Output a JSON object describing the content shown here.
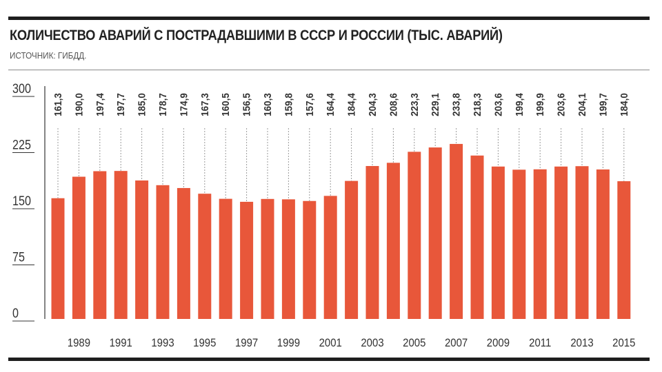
{
  "title": "КОЛИЧЕСТВО АВАРИЙ С ПОСТРАДАВШИМИ В СССР И РОССИИ (ТЫС. АВАРИЙ)",
  "subtitle": "ИСТОЧНИК: ГИБДД.",
  "colors": {
    "bar": "#e8573a",
    "text": "#222222",
    "axis": "#333333",
    "rule": "#1e1e1e"
  },
  "chart_data": {
    "type": "bar",
    "title": "КОЛИЧЕСТВО АВАРИЙ С ПОСТРАДАВШИМИ В СССР И РОССИИ (ТЫС. АВАРИЙ)",
    "xlabel": "",
    "ylabel": "",
    "ylim": [
      0,
      300
    ],
    "yticks": [
      "0",
      "75",
      "150",
      "225",
      "300"
    ],
    "categories": [
      "1988",
      "1989",
      "1990",
      "1991",
      "1992",
      "1993",
      "1994",
      "1995",
      "1996",
      "1997",
      "1998",
      "1999",
      "2000",
      "2001",
      "2002",
      "2003",
      "2004",
      "2005",
      "2006",
      "2007",
      "2008",
      "2009",
      "2010",
      "2011",
      "2012",
      "2013",
      "2014",
      "2015"
    ],
    "xtick_labels": [
      "1989",
      "1991",
      "1993",
      "1995",
      "1997",
      "1999",
      "2001",
      "2003",
      "2005",
      "2007",
      "2009",
      "2011",
      "2013",
      "2015"
    ],
    "values": [
      161.3,
      190.0,
      197.4,
      197.7,
      185.0,
      178.7,
      174.9,
      167.3,
      160.5,
      156.5,
      160.3,
      159.8,
      157.6,
      164.4,
      184.4,
      204.3,
      208.6,
      223.3,
      229.1,
      233.8,
      218.3,
      203.6,
      199.4,
      199.9,
      203.6,
      204.1,
      199.7,
      184.0
    ],
    "value_labels": [
      "161,3",
      "190,0",
      "197,4",
      "197,7",
      "185,0",
      "178,7",
      "174,9",
      "167,3",
      "160,5",
      "156,5",
      "160,3",
      "159,8",
      "157,6",
      "164,4",
      "184,4",
      "204,3",
      "208,6",
      "223,3",
      "229,1",
      "233,8",
      "218,3",
      "203,6",
      "199,4",
      "199,9",
      "203,6",
      "204,1",
      "199,7",
      "184,0"
    ],
    "grid": false,
    "legend": "none"
  }
}
